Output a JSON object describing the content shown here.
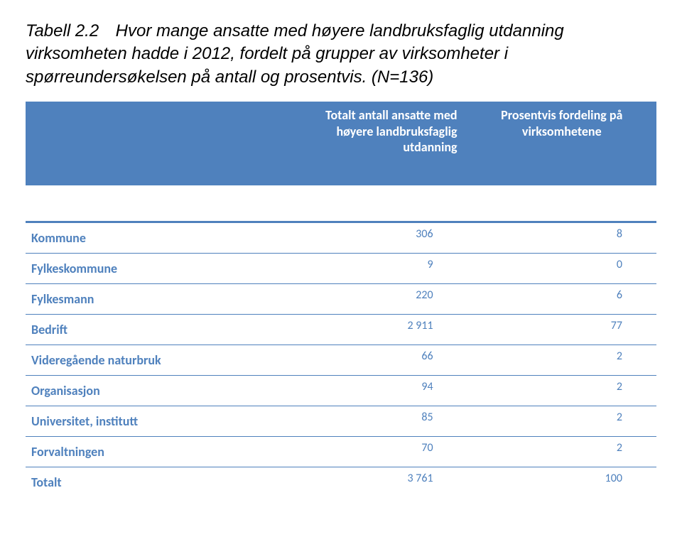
{
  "accent_color": "#4f81bd",
  "header_bg": "#4f81bd",
  "caption": {
    "label": "Tabell 2.2",
    "text": "Hvor mange ansatte med høyere landbruksfaglig utdanning virksomheten hadde i 2012, fordelt på grupper av virksomheter i spørreundersøkelsen på antall og prosentvis. (N=136)"
  },
  "columns": {
    "col1": "Totalt antall ansatte med høyere landbruksfaglig utdanning",
    "col2": "Prosentvis fordeling på virksomhetene"
  },
  "rows": [
    {
      "label": "Kommune",
      "v1": "306",
      "v2": "8"
    },
    {
      "label": "Fylkeskommune",
      "v1": "9",
      "v2": "0"
    },
    {
      "label": "Fylkesmann",
      "v1": "220",
      "v2": "6"
    },
    {
      "label": "Bedrift",
      "v1": "2 911",
      "v2": "77"
    },
    {
      "label": "Videregående naturbruk",
      "v1": "66",
      "v2": "2"
    },
    {
      "label": "Organisasjon",
      "v1": "94",
      "v2": "2"
    },
    {
      "label": "Universitet, institutt",
      "v1": "85",
      "v2": "2"
    },
    {
      "label": "Forvaltningen",
      "v1": "70",
      "v2": "2"
    },
    {
      "label": "Totalt",
      "v1": "3 761",
      "v2": "100"
    }
  ]
}
